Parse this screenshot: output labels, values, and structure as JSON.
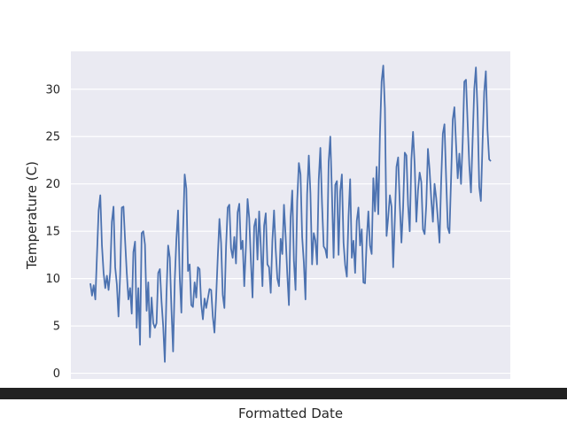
{
  "chart_data": {
    "type": "line",
    "title": "",
    "xlabel": "Formatted Date",
    "ylabel": "Temperature (C)",
    "x_tick_labels": "not legible (dense overlapping date labels)",
    "ylim": [
      -0.6,
      34
    ],
    "yticks": [
      0,
      5,
      10,
      15,
      20,
      25,
      30
    ],
    "grid": true,
    "legend": "none",
    "series_color": "#4c72b0",
    "background_color": "#eaeaf2",
    "grid_color": "#ffffff",
    "x_tick_band_color": "#222222",
    "series": [
      {
        "y": [
          9.5,
          8.2,
          9.3,
          7.8,
          12.5,
          17.2,
          18.8,
          13.5,
          10.6,
          9.0,
          10.3,
          8.8,
          10.7,
          16.0,
          17.6,
          11.2,
          9.4,
          6.0,
          10.4,
          17.5,
          17.6,
          14.0,
          10.6,
          7.8,
          9.0,
          6.3,
          12.8,
          13.9,
          4.8,
          9.0,
          3.0,
          14.8,
          15.0,
          13.6,
          6.6,
          9.6,
          3.8,
          8.0,
          5.3,
          4.8,
          5.3,
          10.6,
          11.0,
          7.6,
          5.0,
          1.2,
          8.4,
          13.5,
          12.2,
          6.8,
          2.3,
          9.8,
          14.2,
          17.2,
          10.2,
          6.4,
          14.8,
          21.0,
          19.5,
          10.8,
          11.5,
          7.2,
          7.0,
          9.6,
          8.0,
          11.2,
          11.0,
          7.3,
          5.7,
          7.9,
          6.9,
          7.9,
          8.9,
          8.8,
          6.0,
          4.3,
          8.0,
          12.3,
          16.3,
          13.8,
          8.3,
          6.9,
          13.4,
          17.5,
          17.8,
          13.2,
          12.2,
          14.4,
          11.6,
          17.0,
          17.9,
          13.1,
          14.0,
          9.2,
          13.3,
          18.4,
          16.4,
          11.9,
          8.0,
          15.5,
          16.3,
          12.0,
          17.1,
          13.4,
          9.2,
          15.6,
          16.9,
          11.5,
          11.2,
          8.5,
          14.0,
          17.2,
          13.1,
          10.0,
          9.2,
          14.2,
          12.6,
          17.8,
          14.5,
          10.5,
          7.2,
          16.4,
          19.3,
          11.9,
          8.8,
          18.2,
          22.2,
          21.0,
          14.4,
          11.7,
          7.8,
          18.9,
          23.0,
          19.0,
          11.5,
          14.8,
          14.0,
          11.5,
          20.4,
          23.8,
          17.9,
          13.4,
          13.1,
          12.2,
          22.3,
          25.0,
          19.0,
          12.2,
          19.9,
          20.3,
          12.5,
          19.2,
          21.0,
          13.8,
          11.4,
          10.2,
          16.5,
          20.5,
          12.2,
          14.0,
          10.6,
          16.1,
          17.5,
          13.5,
          15.2,
          9.6,
          9.5,
          14.1,
          17.1,
          13.5,
          12.6,
          20.6,
          17.1,
          21.8,
          16.8,
          25.3,
          30.8,
          32.5,
          28.0,
          14.5,
          16.5,
          18.8,
          17.6,
          11.2,
          16.2,
          21.8,
          22.8,
          17.8,
          13.8,
          17.5,
          23.3,
          23.0,
          17.8,
          15.0,
          22.6,
          25.5,
          22.0,
          16.0,
          19.3,
          21.2,
          20.2,
          15.2,
          14.7,
          17.8,
          23.7,
          21.5,
          18.4,
          16.0,
          20.0,
          18.5,
          16.3,
          13.8,
          20.3,
          25.3,
          26.3,
          20.6,
          15.4,
          14.8,
          20.6,
          26.8,
          28.1,
          24.2,
          20.6,
          23.2,
          20.0,
          24.4,
          30.8,
          31.0,
          26.4,
          22.0,
          19.1,
          24.6,
          30.0,
          32.3,
          27.6,
          19.7,
          18.2,
          24.3,
          29.7,
          31.9,
          25.7,
          22.6,
          22.4
        ]
      }
    ]
  }
}
